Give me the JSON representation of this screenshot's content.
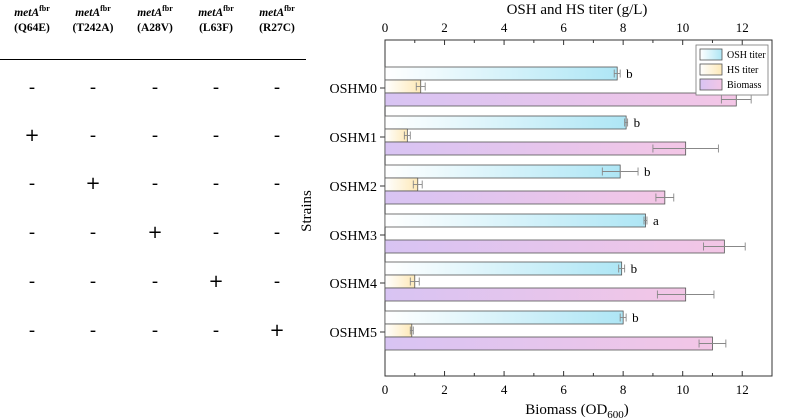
{
  "mutation_table": {
    "columns": [
      {
        "gene": "metA",
        "sup": "fbr",
        "mutation": "(Q64E)"
      },
      {
        "gene": "metA",
        "sup": "fbr",
        "mutation": "(T242A)"
      },
      {
        "gene": "metA",
        "sup": "fbr",
        "mutation": "(A28V)"
      },
      {
        "gene": "metA",
        "sup": "fbr",
        "mutation": "(L63F)"
      },
      {
        "gene": "metA",
        "sup": "fbr",
        "mutation": "(R27C)"
      }
    ],
    "rows": [
      [
        "-",
        "-",
        "-",
        "-",
        "-"
      ],
      [
        "+",
        "-",
        "-",
        "-",
        "-"
      ],
      [
        "-",
        "+",
        "-",
        "-",
        "-"
      ],
      [
        "-",
        "-",
        "+",
        "-",
        "-"
      ],
      [
        "-",
        "-",
        "-",
        "+",
        "-"
      ],
      [
        "-",
        "-",
        "-",
        "-",
        "+"
      ]
    ]
  },
  "chart_data": {
    "type": "bar",
    "orientation": "horizontal",
    "categories": [
      "OSHM0",
      "OSHM1",
      "OSHM2",
      "OSHM3",
      "OSHM4",
      "OSHM5"
    ],
    "ylabel": "Strains",
    "top_axis": {
      "label": "OSH and HS titer (g/L)",
      "range": [
        0,
        13
      ],
      "ticks": [
        0,
        2,
        4,
        6,
        8,
        10,
        12
      ]
    },
    "bottom_axis": {
      "label": "Biomass (OD",
      "label_sub": "600",
      "label_end": ")",
      "range": [
        0,
        13
      ],
      "ticks": [
        0,
        2,
        4,
        6,
        8,
        10,
        12
      ]
    },
    "series": [
      {
        "name": "OSH titer",
        "axis": "top",
        "gradient": [
          "#aee6f5",
          "#ffffff"
        ],
        "values": [
          7.8,
          8.1,
          7.9,
          8.75,
          7.95,
          8.0
        ],
        "errors": [
          0.1,
          0.05,
          0.6,
          0.05,
          0.1,
          0.1
        ],
        "sig": [
          "b",
          "b",
          "b",
          "a",
          "b",
          "b"
        ]
      },
      {
        "name": "HS titer",
        "axis": "top",
        "gradient": [
          "#fde9b8",
          "#ffffff"
        ],
        "values": [
          1.2,
          0.75,
          1.1,
          0,
          1.0,
          0.9
        ],
        "errors": [
          0.15,
          0.1,
          0.15,
          0,
          0.15,
          0.05
        ]
      },
      {
        "name": "Biomass",
        "axis": "bottom",
        "gradient": [
          "#f3c6e6",
          "#d8c4f3"
        ],
        "values": [
          11.8,
          10.1,
          9.4,
          11.4,
          10.1,
          11.0
        ],
        "errors": [
          0.5,
          1.1,
          0.3,
          0.7,
          0.95,
          0.45
        ]
      }
    ],
    "legend": "top-right"
  }
}
